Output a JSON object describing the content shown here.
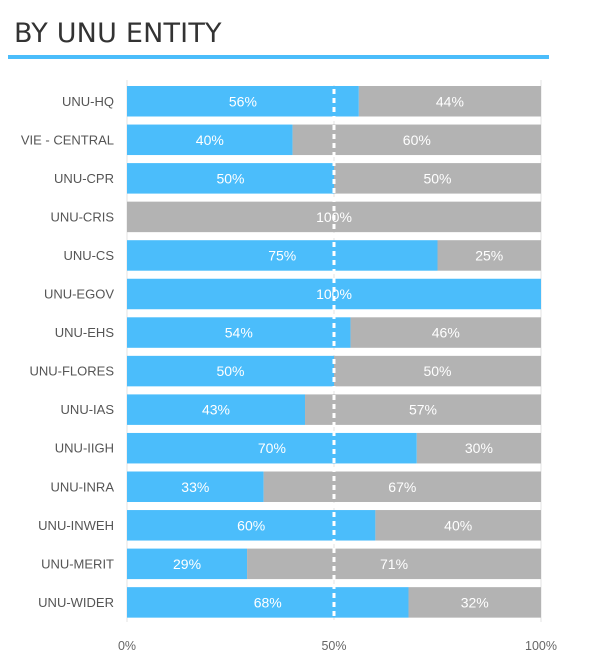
{
  "title": "BY UNU ENTITY",
  "colors": {
    "accent": "#4BBDFB",
    "secondary": "#B3B3B3",
    "title_rule": "#4BBDFB",
    "reference_line": "#ffffff"
  },
  "chart_data": {
    "type": "bar",
    "orientation": "horizontal",
    "stacked": true,
    "normalized_100": true,
    "categories": [
      "UNU-HQ",
      "VIE - CENTRAL",
      "UNU-CPR",
      "UNU-CRIS",
      "UNU-CS",
      "UNU-EGOV",
      "UNU-EHS",
      "UNU-FLORES",
      "UNU-IAS",
      "UNU-IIGH",
      "UNU-INRA",
      "UNU-INWEH",
      "UNU-MERIT",
      "UNU-WIDER"
    ],
    "series": [
      {
        "color": "#4BBDFB",
        "values": [
          56,
          40,
          50,
          0,
          75,
          100,
          54,
          50,
          43,
          70,
          33,
          60,
          29,
          68
        ]
      },
      {
        "color": "#B3B3B3",
        "values": [
          44,
          60,
          50,
          100,
          25,
          0,
          46,
          50,
          57,
          30,
          67,
          40,
          71,
          32
        ]
      }
    ],
    "xlim": [
      0,
      100
    ],
    "x_ticks": [
      "0%",
      "50%",
      "100%"
    ],
    "reference_line": 50,
    "value_suffix": "%",
    "grid": true,
    "legend": false
  }
}
